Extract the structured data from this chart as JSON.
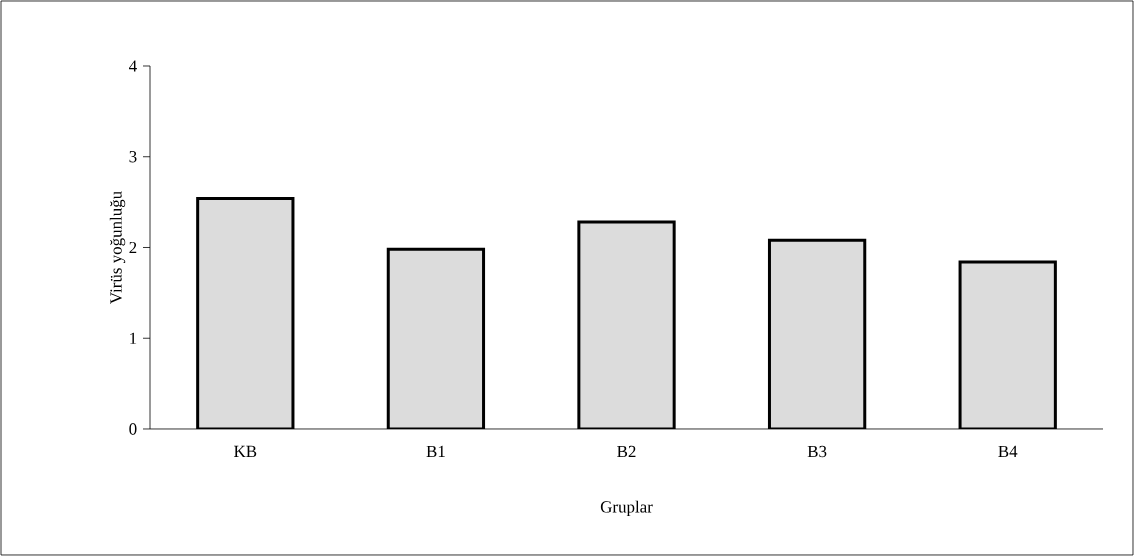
{
  "chart_data": {
    "type": "bar",
    "xlabel": "Gruplar",
    "ylabel": "Virüs yoğunluğu",
    "categories": [
      "KB",
      "B1",
      "B2",
      "B3",
      "B4"
    ],
    "values": [
      2.54,
      1.98,
      2.28,
      2.08,
      1.84
    ],
    "color": "#dcdcdc",
    "ylim": [
      0,
      4
    ],
    "yticks": [
      0,
      1,
      2,
      3,
      4
    ],
    "grid": false
  }
}
